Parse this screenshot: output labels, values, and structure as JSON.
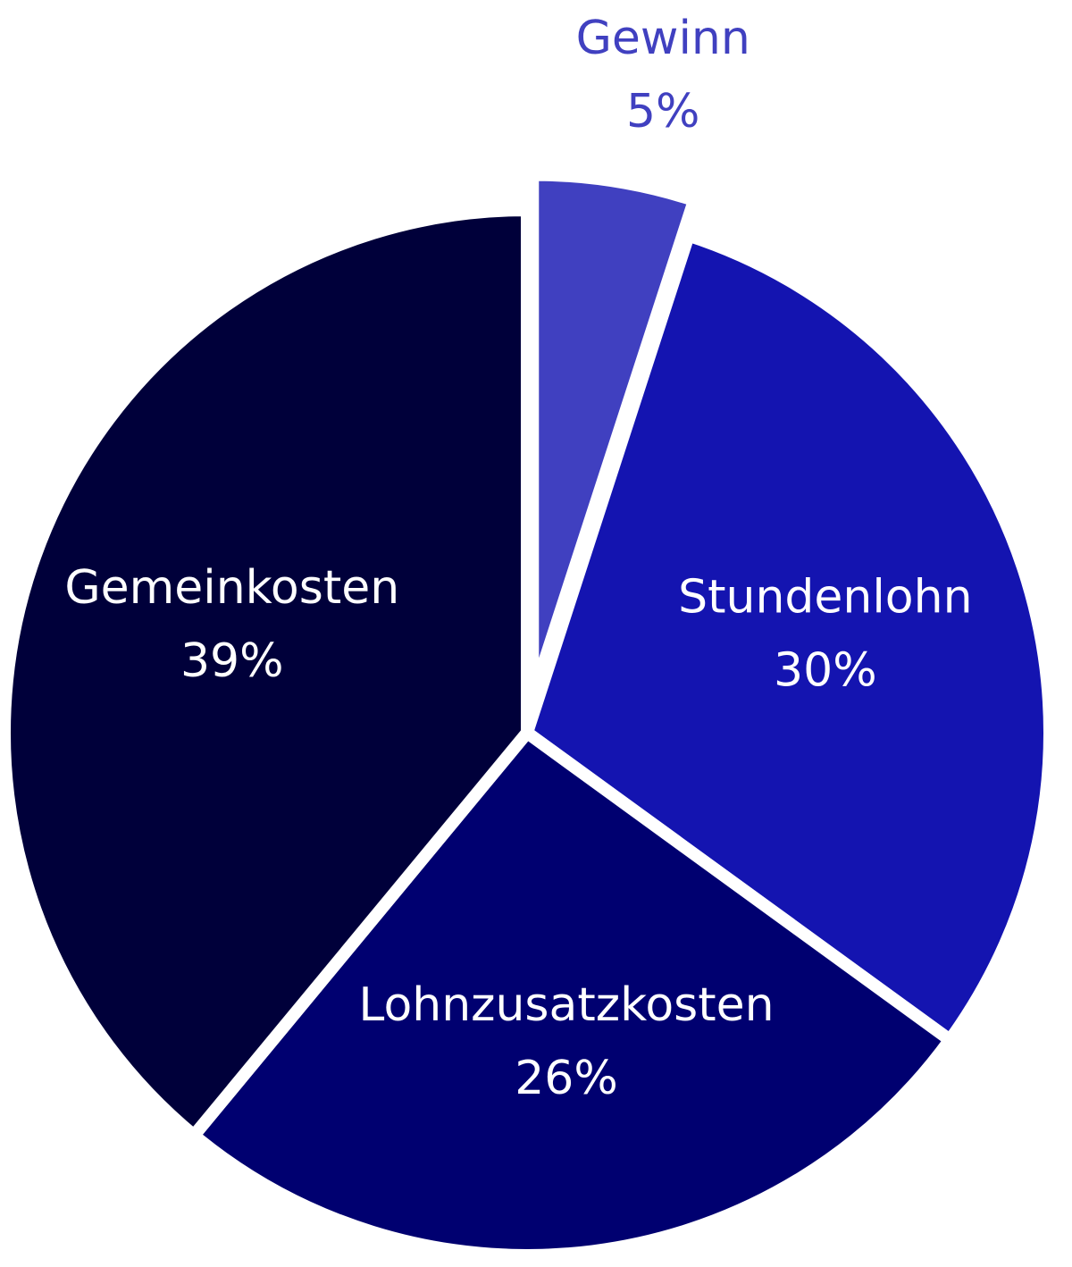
{
  "chart_data": {
    "type": "pie",
    "categories": [
      "Gewinn",
      "Stundenlohn",
      "Lohnzusatzkosten",
      "Gemeinkosten"
    ],
    "values": [
      5,
      30,
      26,
      39
    ],
    "value_labels": [
      "5%",
      "30%",
      "26%",
      "39%"
    ],
    "colors": [
      "#4040c0",
      "#1414b0",
      "#000070",
      "#00003a"
    ]
  }
}
